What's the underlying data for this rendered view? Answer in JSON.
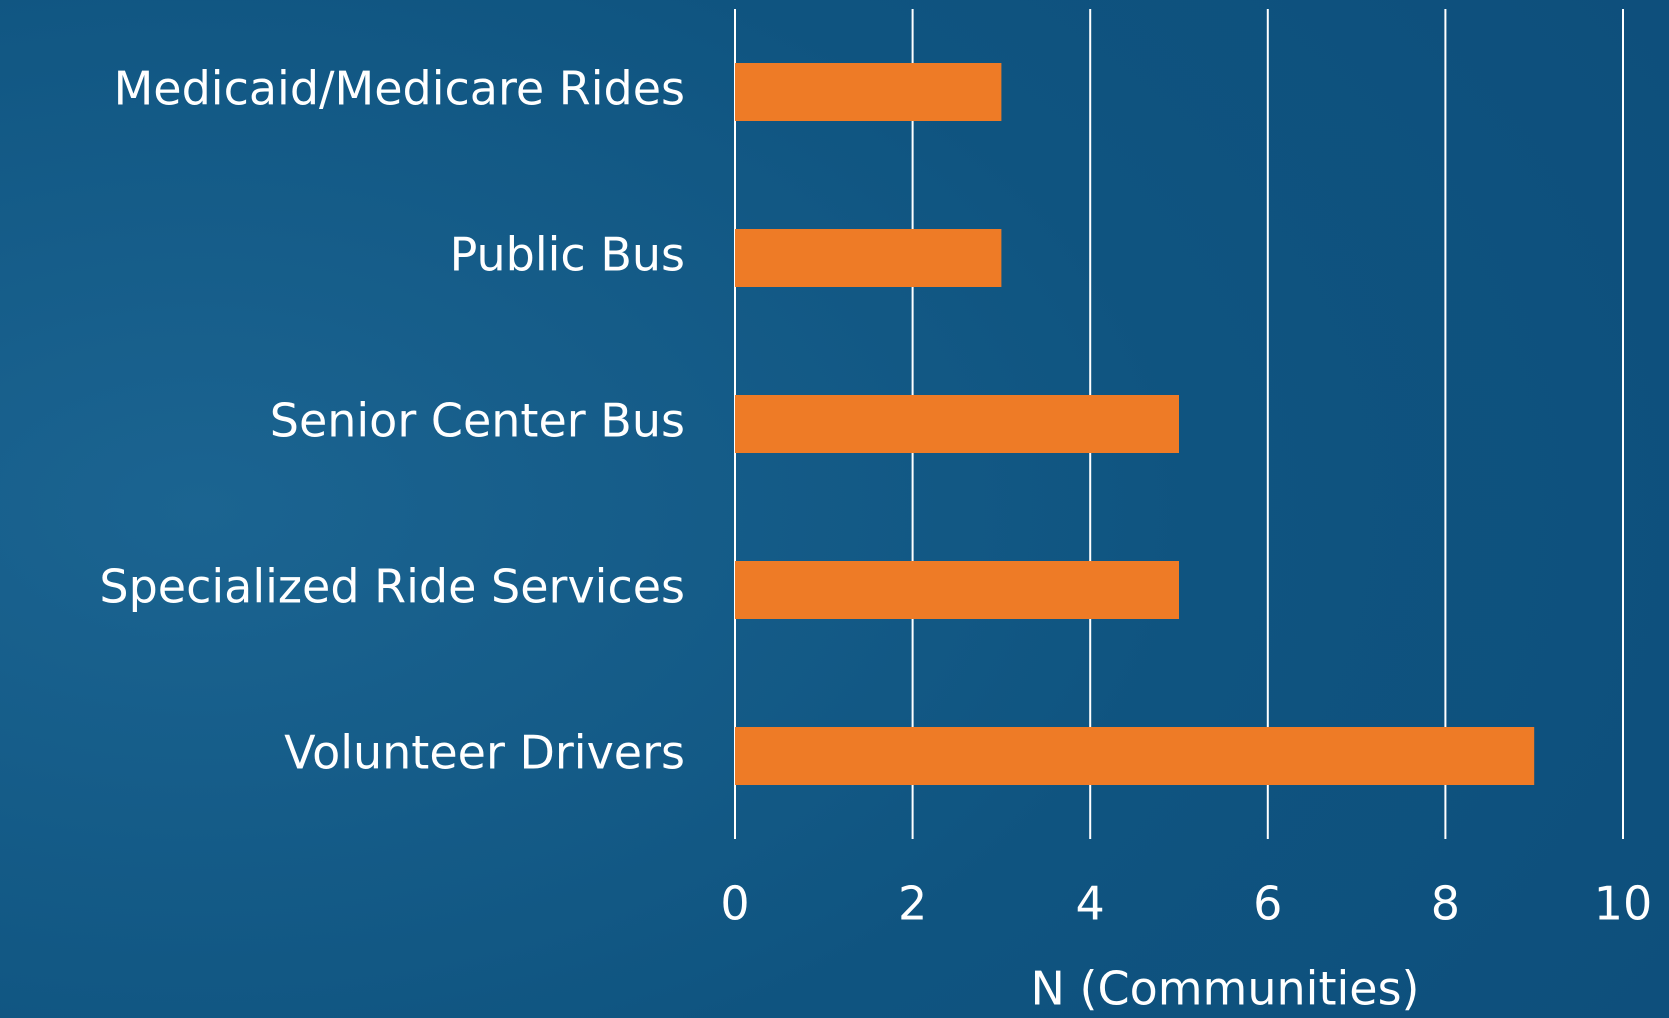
{
  "chart_data": {
    "type": "bar",
    "orientation": "horizontal",
    "categories": [
      "Medicaid/Medicare Rides",
      "Public Bus",
      "Senior Center Bus",
      "Specialized Ride Services",
      "Volunteer Drivers"
    ],
    "values": [
      3,
      3,
      5,
      5,
      9
    ],
    "color": "#ee7b26",
    "xlabel": "N (Communities)",
    "xlim": [
      0,
      10
    ],
    "xticks": [
      0,
      2,
      4,
      6,
      8,
      10
    ],
    "grid": true
  }
}
